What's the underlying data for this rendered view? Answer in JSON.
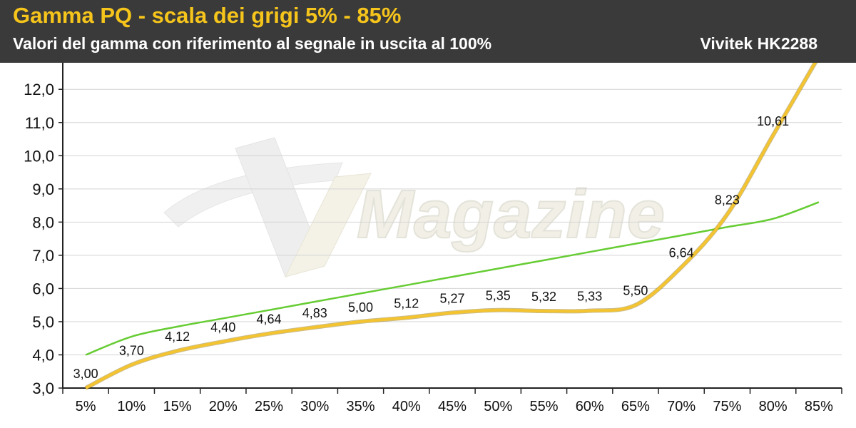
{
  "header": {
    "title": "Gamma PQ - scala dei grigi 5% - 85%",
    "subtitle": "Valori del gamma con riferimento al segnale in uscita al 100%",
    "device": "Vivitek HK2288"
  },
  "watermark": {
    "text": "Magazine"
  },
  "colors": {
    "measured": "#f4c430",
    "reference": "#66cc33",
    "header_bg": "#3a3a3a",
    "title": "#f6c51b"
  },
  "chart_data": {
    "type": "line",
    "categories": [
      "5%",
      "10%",
      "15%",
      "20%",
      "25%",
      "30%",
      "35%",
      "40%",
      "45%",
      "50%",
      "55%",
      "60%",
      "65%",
      "70%",
      "75%",
      "80%",
      "85%"
    ],
    "series": [
      {
        "key": "measured",
        "values": [
          3.0,
          3.7,
          4.12,
          4.4,
          4.64,
          4.83,
          5.0,
          5.12,
          5.27,
          5.35,
          5.32,
          5.33,
          5.5,
          6.64,
          8.23,
          10.61,
          null
        ],
        "labels": [
          "3,00",
          "3,70",
          "4,12",
          "4,40",
          "4,64",
          "4,83",
          "5,00",
          "5,12",
          "5,27",
          "5,35",
          "5,32",
          "5,33",
          "5,50",
          "6,64",
          "8,23",
          "10,61",
          ""
        ]
      },
      {
        "key": "reference",
        "values": [
          4.0,
          4.55,
          4.85,
          5.1,
          5.35,
          5.6,
          5.85,
          6.1,
          6.35,
          6.6,
          6.85,
          7.1,
          7.35,
          7.6,
          7.85,
          8.1,
          8.6
        ]
      }
    ],
    "yticks": [
      "12,0",
      "11,0",
      "10,0",
      "9,0",
      "8,0",
      "7,0",
      "6,0",
      "5,0",
      "4,0",
      "3,0"
    ],
    "ytick_values": [
      12,
      11,
      10,
      9,
      8,
      7,
      6,
      5,
      4,
      3
    ],
    "ylim": [
      3,
      12.8
    ],
    "grid": true,
    "legend": "none"
  }
}
